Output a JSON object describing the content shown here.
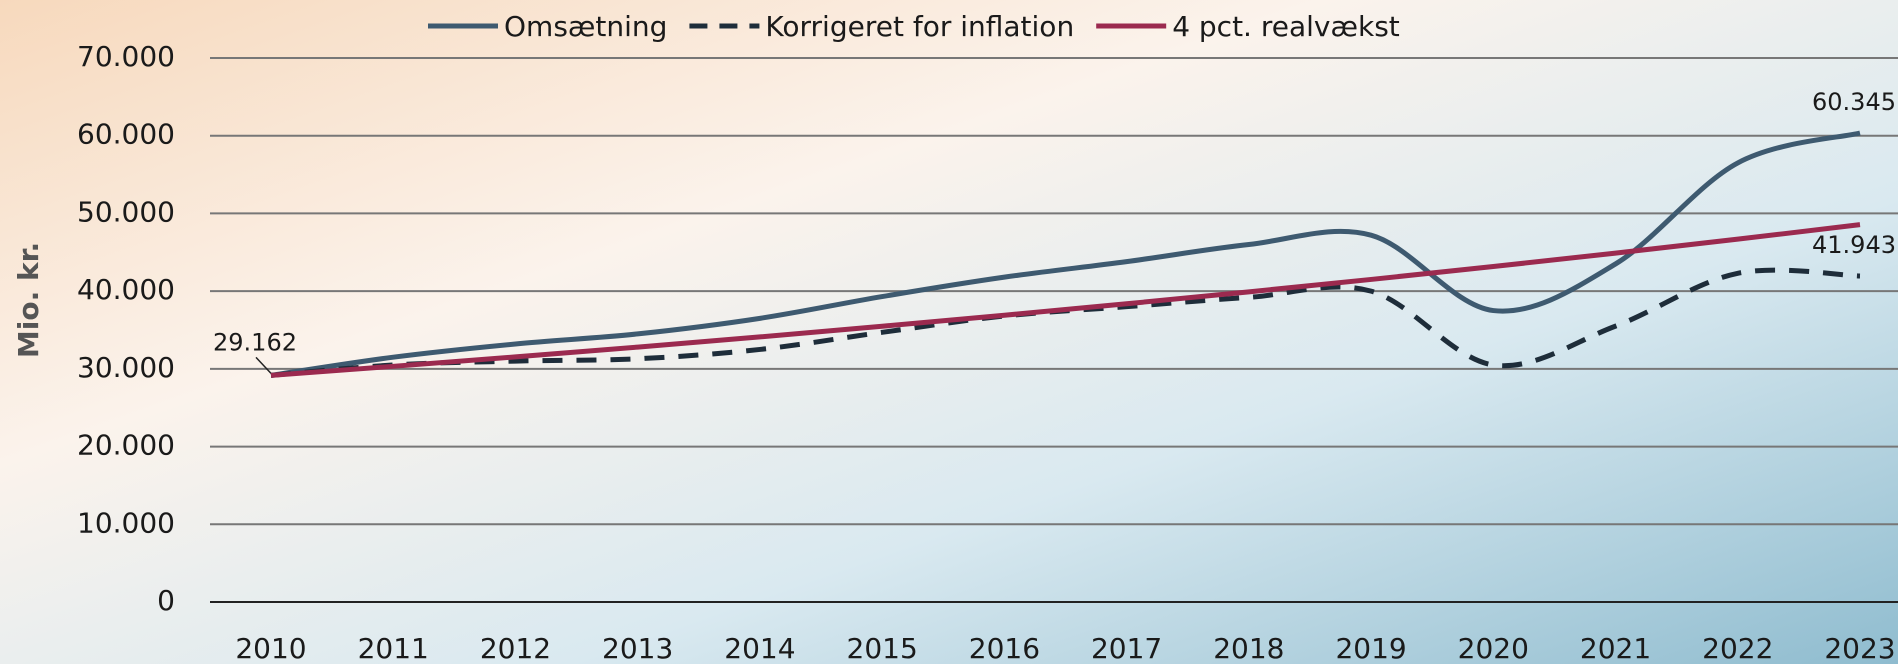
{
  "chart_data": {
    "type": "line",
    "y_label": "Mio. kr.",
    "categories": [
      "2010",
      "2011",
      "2012",
      "2013",
      "2014",
      "2015",
      "2016",
      "2017",
      "2018",
      "2019",
      "2020",
      "2021",
      "2022",
      "2023"
    ],
    "series": [
      {
        "name": "Omsætning",
        "color": "#3e5a70",
        "style": "solid",
        "values": [
          29162,
          31500,
          33200,
          34500,
          36500,
          39300,
          41800,
          43800,
          46000,
          47200,
          37500,
          43500,
          56500,
          60345
        ],
        "value_labels": [
          "29.162",
          null,
          null,
          null,
          null,
          null,
          null,
          null,
          null,
          null,
          null,
          null,
          null,
          "60.345"
        ]
      },
      {
        "name": "Korrigeret for inflation",
        "color": "#1e2d3a",
        "style": "dashed",
        "values": [
          29162,
          30500,
          31000,
          31300,
          32500,
          34700,
          36800,
          38000,
          39200,
          40000,
          30500,
          35500,
          42300,
          41943
        ],
        "value_labels": [
          null,
          null,
          null,
          null,
          null,
          null,
          null,
          null,
          null,
          null,
          null,
          null,
          null,
          "41.943"
        ]
      },
      {
        "name": "4 pct. realvækst",
        "color": "#9b2a4f",
        "style": "solid",
        "values": [
          29162,
          30328,
          31542,
          32803,
          34115,
          35480,
          36899,
          38375,
          39910,
          41507,
          43167,
          44894,
          46690,
          48557
        ]
      }
    ],
    "ylim": [
      0,
      70000
    ],
    "yticks": [
      0,
      {
        "value": 10000,
        "label": "10.000"
      },
      {
        "value": 20000,
        "label": "20.000"
      },
      {
        "value": 30000,
        "label": "30.000"
      },
      {
        "value": 40000,
        "label": "40.000"
      },
      {
        "value": 50000,
        "label": "50.000"
      },
      {
        "value": 60000,
        "label": "60.000"
      },
      {
        "value": 70000,
        "label": "70.000"
      }
    ],
    "grid": true,
    "legend": "top"
  }
}
